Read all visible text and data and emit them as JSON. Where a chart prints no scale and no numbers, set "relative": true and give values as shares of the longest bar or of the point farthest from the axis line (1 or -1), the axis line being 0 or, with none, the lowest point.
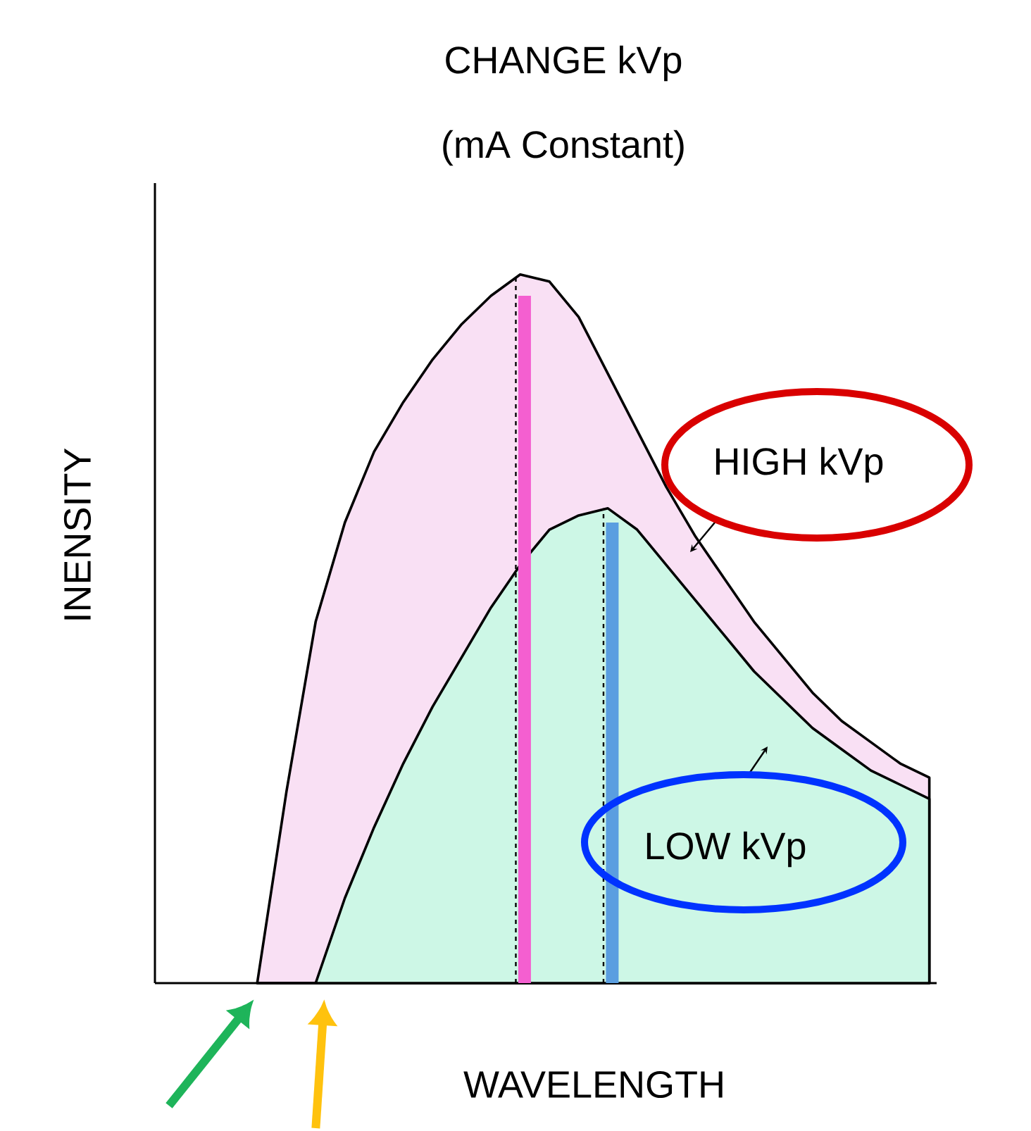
{
  "chart_data": {
    "type": "area",
    "title": "CHANGE kVp",
    "subtitle": "(mA Constant)",
    "xlabel": "WAVELENGTH",
    "ylabel": "INENSITY",
    "relative": true,
    "categories": [
      null,
      null,
      null,
      null,
      null,
      null,
      null,
      null,
      null,
      null,
      null,
      null,
      null,
      null,
      null,
      null,
      null,
      null,
      null,
      null,
      null,
      null,
      null,
      null
    ],
    "series": [
      {
        "name": "HIGH kVp",
        "color": "#f9e0f4",
        "values": [
          0,
          0.27,
          0.51,
          0.65,
          0.75,
          0.82,
          0.88,
          0.93,
          0.97,
          1.0,
          0.99,
          0.94,
          0.86,
          0.78,
          0.7,
          0.63,
          0.57,
          0.51,
          0.46,
          0.41,
          0.37,
          0.34,
          0.31,
          0.29
        ]
      },
      {
        "name": "LOW kVp",
        "color": "#cdf7e6",
        "values": [
          0,
          0,
          0,
          0.12,
          0.22,
          0.31,
          0.39,
          0.46,
          0.53,
          0.59,
          0.64,
          0.66,
          0.67,
          0.64,
          0.59,
          0.54,
          0.49,
          0.44,
          0.4,
          0.36,
          0.33,
          0.3,
          0.28,
          0.26
        ]
      }
    ]
  }
}
